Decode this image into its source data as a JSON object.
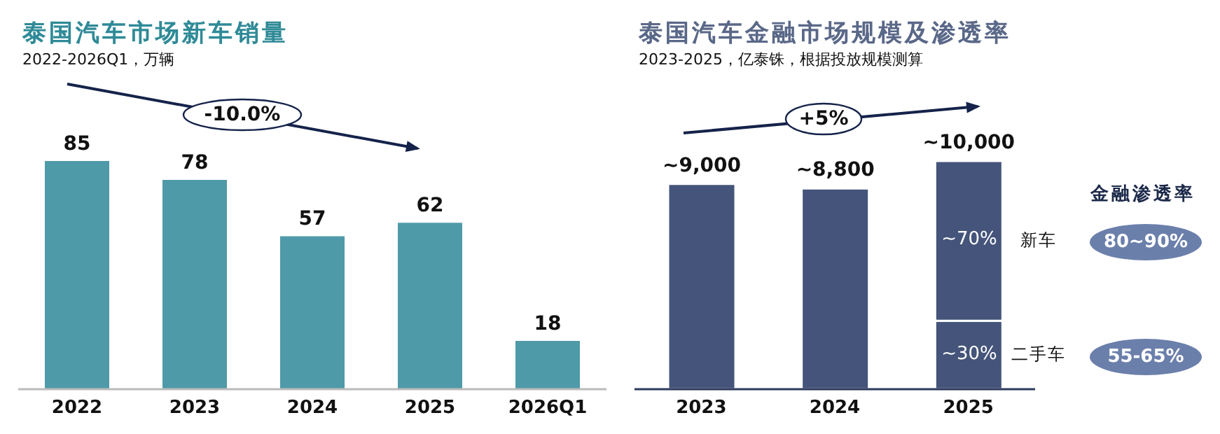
{
  "chart_data": [
    {
      "type": "bar",
      "title": "泰国汽车市场新车销量",
      "subtitle": "2022-2026Q1，万辆",
      "categories": [
        "2022",
        "2023",
        "2024",
        "2025",
        "2026Q1"
      ],
      "values": [
        85,
        78,
        57,
        62,
        18
      ],
      "color": "#4f9aa8",
      "data_labels": true,
      "annotations": [
        "-10.0%"
      ]
    },
    {
      "type": "bar",
      "title": "泰国汽车金融市场规模及渗透率",
      "subtitle": "2023-2025，亿泰铢，根据投放规模测算",
      "categories": [
        "2023",
        "2024",
        "2025"
      ],
      "stacked": true,
      "series": [
        {
          "name": "二手车",
          "color": "#44547a",
          "values": [
            null,
            null,
            3000
          ]
        },
        {
          "name": "新车",
          "color": "#44547a",
          "values": [
            9000,
            8800,
            7000
          ],
          "value_labels": [
            "~9,000",
            "~8,800",
            null
          ]
        }
      ],
      "totals": [
        null,
        null,
        "~10,000"
      ],
      "annotations": [
        "+5%",
        "~70%",
        "~30%",
        "金融渗透率",
        "80~90%",
        "55-65%"
      ]
    }
  ]
}
